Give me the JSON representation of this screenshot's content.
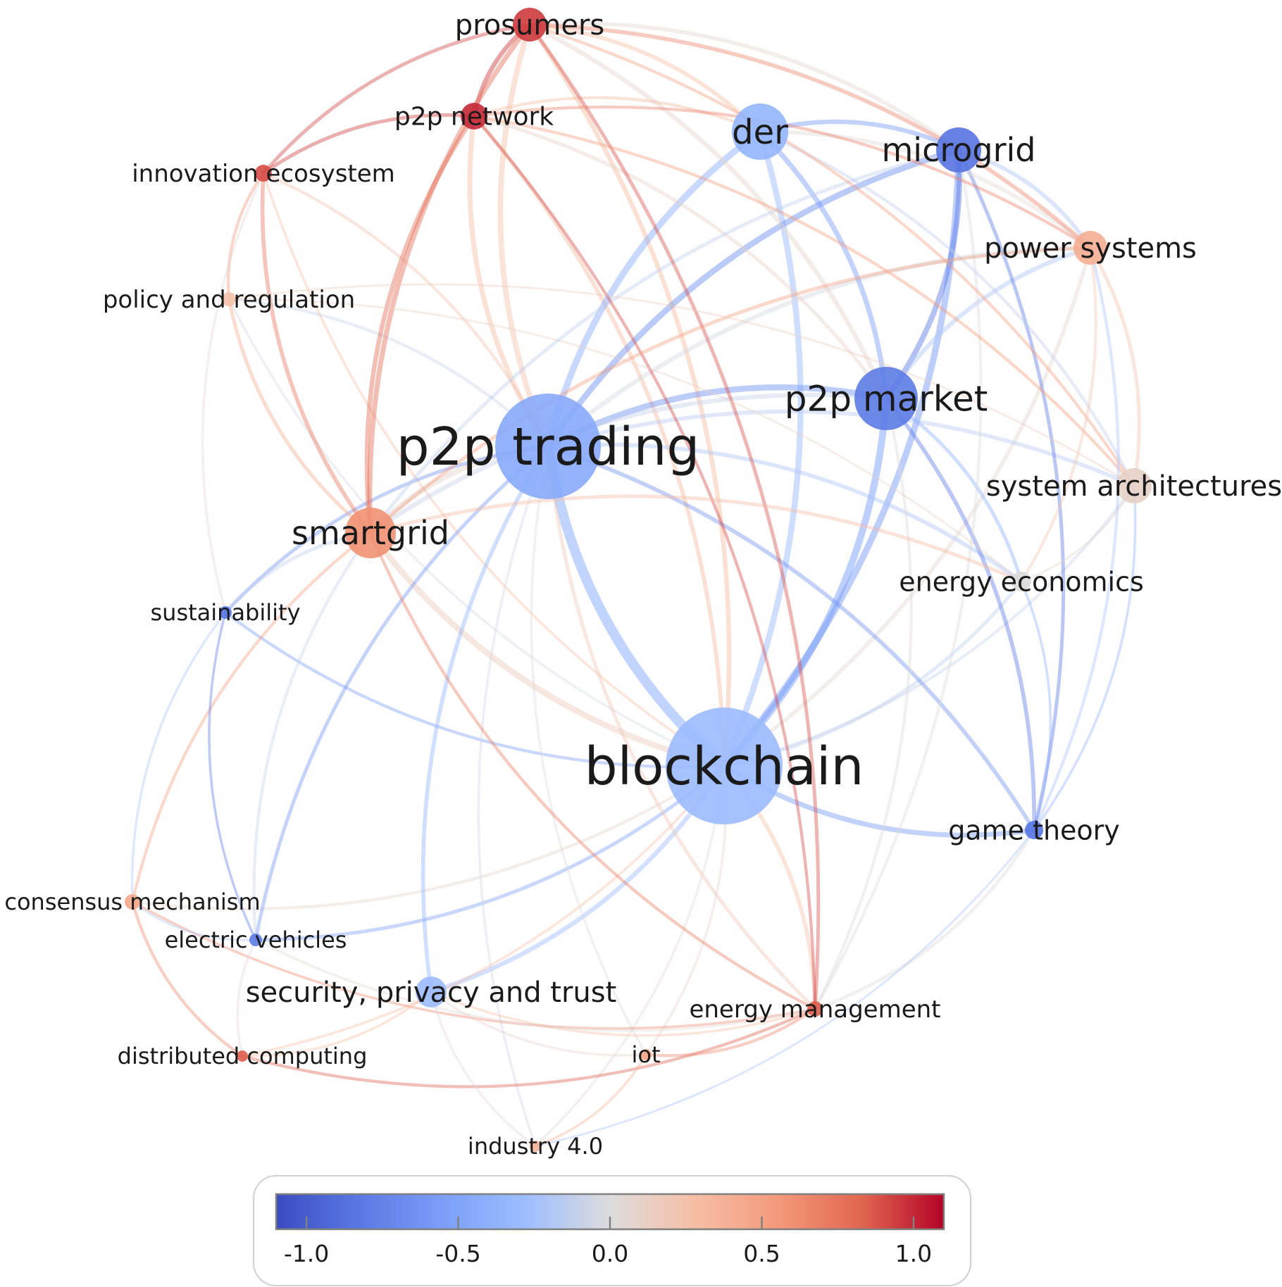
{
  "diagram": {
    "type": "keyword-co-occurrence-network",
    "nodes": [
      {
        "id": "prosumers",
        "label": "prosumers",
        "value": 0.95
      },
      {
        "id": "p2p_network",
        "label": "p2p network",
        "value": 1.0
      },
      {
        "id": "innovation_ecosystem",
        "label": "innovation ecosystem",
        "value": 0.9
      },
      {
        "id": "policy_regulation",
        "label": "policy and regulation",
        "value": 0.25
      },
      {
        "id": "der",
        "label": "der",
        "value": -0.35
      },
      {
        "id": "microgrid",
        "label": "microgrid",
        "value": -0.85
      },
      {
        "id": "power_systems",
        "label": "power systems",
        "value": 0.4
      },
      {
        "id": "p2p_market",
        "label": "p2p market",
        "value": -0.8
      },
      {
        "id": "p2p_trading",
        "label": "p2p trading",
        "value": -0.45
      },
      {
        "id": "system_architectures",
        "label": "system architectures",
        "value": 0.1
      },
      {
        "id": "smartgrid",
        "label": "smartgrid",
        "value": 0.6
      },
      {
        "id": "energy_economics",
        "label": "energy economics",
        "value": 0.0
      },
      {
        "id": "sustainability",
        "label": "sustainability",
        "value": -0.85
      },
      {
        "id": "blockchain",
        "label": "blockchain",
        "value": -0.3
      },
      {
        "id": "game_theory",
        "label": "game theory",
        "value": -0.85
      },
      {
        "id": "consensus_mechanism",
        "label": "consensus mechanism",
        "value": 0.45
      },
      {
        "id": "electric_vehicles",
        "label": "electric vehicles",
        "value": -0.8
      },
      {
        "id": "security_privacy_trust",
        "label": "security, privacy and trust",
        "value": -0.3
      },
      {
        "id": "energy_management",
        "label": "energy management",
        "value": 0.85
      },
      {
        "id": "distributed_computing",
        "label": "distributed computing",
        "value": 0.85
      },
      {
        "id": "iot",
        "label": "iot",
        "value": 0.45
      },
      {
        "id": "industry_4_0",
        "label": "industry 4.0",
        "value": 0.35
      }
    ],
    "edges": [
      [
        "blockchain",
        "p2p_trading",
        0.9
      ],
      [
        "blockchain",
        "p2p_market",
        0.6
      ],
      [
        "blockchain",
        "microgrid",
        0.55
      ],
      [
        "blockchain",
        "der",
        0.5
      ],
      [
        "blockchain",
        "smartgrid",
        0.5
      ],
      [
        "blockchain",
        "game_theory",
        0.4
      ],
      [
        "blockchain",
        "security_privacy_trust",
        0.35
      ],
      [
        "blockchain",
        "energy_management",
        0.3
      ],
      [
        "blockchain",
        "prosumers",
        0.35
      ],
      [
        "blockchain",
        "p2p_network",
        0.3
      ],
      [
        "blockchain",
        "power_systems",
        0.3
      ],
      [
        "blockchain",
        "energy_economics",
        0.25
      ],
      [
        "blockchain",
        "electric_vehicles",
        0.25
      ],
      [
        "blockchain",
        "sustainability",
        0.2
      ],
      [
        "blockchain",
        "system_architectures",
        0.2
      ],
      [
        "blockchain",
        "consensus_mechanism",
        0.2
      ],
      [
        "blockchain",
        "iot",
        0.15
      ],
      [
        "blockchain",
        "industry_4_0",
        0.15
      ],
      [
        "blockchain",
        "distributed_computing",
        0.15
      ],
      [
        "blockchain",
        "innovation_ecosystem",
        0.15
      ],
      [
        "blockchain",
        "policy_regulation",
        0.15
      ],
      [
        "p2p_trading",
        "der",
        0.55
      ],
      [
        "p2p_trading",
        "microgrid",
        0.5
      ],
      [
        "p2p_trading",
        "p2p_market",
        0.5
      ],
      [
        "p2p_trading",
        "prosumers",
        0.45
      ],
      [
        "p2p_trading",
        "smartgrid",
        0.45
      ],
      [
        "p2p_trading",
        "p2p_network",
        0.4
      ],
      [
        "p2p_trading",
        "power_systems",
        0.35
      ],
      [
        "p2p_trading",
        "energy_economics",
        0.3
      ],
      [
        "p2p_trading",
        "system_architectures",
        0.3
      ],
      [
        "p2p_trading",
        "game_theory",
        0.3
      ],
      [
        "p2p_trading",
        "security_privacy_trust",
        0.3
      ],
      [
        "p2p_trading",
        "energy_management",
        0.25
      ],
      [
        "p2p_trading",
        "sustainability",
        0.25
      ],
      [
        "p2p_trading",
        "electric_vehicles",
        0.25
      ],
      [
        "p2p_trading",
        "innovation_ecosystem",
        0.2
      ],
      [
        "p2p_trading",
        "policy_regulation",
        0.2
      ],
      [
        "p2p_trading",
        "iot",
        0.15
      ],
      [
        "p2p_trading",
        "industry_4_0",
        0.15
      ],
      [
        "p2p_market",
        "microgrid",
        0.45
      ],
      [
        "p2p_market",
        "der",
        0.4
      ],
      [
        "p2p_market",
        "prosumers",
        0.35
      ],
      [
        "p2p_market",
        "power_systems",
        0.35
      ],
      [
        "p2p_market",
        "smartgrid",
        0.35
      ],
      [
        "p2p_market",
        "game_theory",
        0.3
      ],
      [
        "p2p_market",
        "energy_economics",
        0.25
      ],
      [
        "p2p_market",
        "energy_management",
        0.2
      ],
      [
        "p2p_market",
        "p2p_network",
        0.25
      ],
      [
        "microgrid",
        "der",
        0.35
      ],
      [
        "microgrid",
        "prosumers",
        0.3
      ],
      [
        "microgrid",
        "power_systems",
        0.3
      ],
      [
        "microgrid",
        "game_theory",
        0.25
      ],
      [
        "microgrid",
        "smartgrid",
        0.25
      ],
      [
        "microgrid",
        "energy_management",
        0.2
      ],
      [
        "der",
        "prosumers",
        0.3
      ],
      [
        "der",
        "power_systems",
        0.3
      ],
      [
        "der",
        "p2p_network",
        0.2
      ],
      [
        "der",
        "system_architectures",
        0.2
      ],
      [
        "prosumers",
        "p2p_network",
        0.35
      ],
      [
        "prosumers",
        "smartgrid",
        0.4
      ],
      [
        "prosumers",
        "power_systems",
        0.3
      ],
      [
        "prosumers",
        "innovation_ecosystem",
        0.25
      ],
      [
        "prosumers",
        "energy_management",
        0.25
      ],
      [
        "prosumers",
        "system_architectures",
        0.2
      ],
      [
        "p2p_network",
        "smartgrid",
        0.35
      ],
      [
        "p2p_network",
        "innovation_ecosystem",
        0.25
      ],
      [
        "p2p_network",
        "power_systems",
        0.2
      ],
      [
        "p2p_network",
        "energy_management",
        0.2
      ],
      [
        "p2p_network",
        "system_architectures",
        0.2
      ],
      [
        "smartgrid",
        "innovation_ecosystem",
        0.3
      ],
      [
        "smartgrid",
        "policy_regulation",
        0.25
      ],
      [
        "smartgrid",
        "sustainability",
        0.25
      ],
      [
        "smartgrid",
        "consensus_mechanism",
        0.2
      ],
      [
        "smartgrid",
        "electric_vehicles",
        0.2
      ],
      [
        "smartgrid",
        "energy_management",
        0.2
      ],
      [
        "smartgrid",
        "power_systems",
        0.25
      ],
      [
        "smartgrid",
        "energy_economics",
        0.25
      ],
      [
        "power_systems",
        "system_architectures",
        0.25
      ],
      [
        "power_systems",
        "energy_economics",
        0.2
      ],
      [
        "power_systems",
        "game_theory",
        0.2
      ],
      [
        "energy_management",
        "game_theory",
        0.25
      ],
      [
        "energy_management",
        "distributed_computing",
        0.2
      ],
      [
        "energy_management",
        "iot",
        0.2
      ],
      [
        "energy_management",
        "security_privacy_trust",
        0.15
      ],
      [
        "energy_management",
        "consensus_mechanism",
        0.15
      ],
      [
        "energy_management",
        "electric_vehicles",
        0.15
      ],
      [
        "consensus_mechanism",
        "distributed_computing",
        0.2
      ],
      [
        "consensus_mechanism",
        "electric_vehicles",
        0.15
      ],
      [
        "consensus_mechanism",
        "sustainability",
        0.15
      ],
      [
        "distributed_computing",
        "electric_vehicles",
        0.15
      ],
      [
        "distributed_computing",
        "security_privacy_trust",
        0.15
      ],
      [
        "security_privacy_trust",
        "iot",
        0.15
      ],
      [
        "security_privacy_trust",
        "industry_4_0",
        0.15
      ],
      [
        "iot",
        "industry_4_0",
        0.15
      ],
      [
        "innovation_ecosystem",
        "policy_regulation",
        0.2
      ],
      [
        "innovation_ecosystem",
        "sustainability",
        0.15
      ],
      [
        "game_theory",
        "system_architectures",
        0.15
      ],
      [
        "game_theory",
        "energy_economics",
        0.15
      ],
      [
        "game_theory",
        "industry_4_0",
        0.1
      ],
      [
        "system_architectures",
        "energy_economics",
        0.15
      ],
      [
        "sustainability",
        "electric_vehicles",
        0.15
      ],
      [
        "policy_regulation",
        "system_architectures",
        0.1
      ],
      [
        "policy_regulation",
        "energy_economics",
        0.1
      ]
    ]
  },
  "colorbar": {
    "colormap": "coolwarm",
    "range": [
      -1.1,
      1.1
    ],
    "ticks": [
      {
        "value": -1.0,
        "label": "-1.0"
      },
      {
        "value": -0.5,
        "label": "-0.5"
      },
      {
        "value": 0.0,
        "label": "0.0"
      },
      {
        "value": 0.5,
        "label": "0.5"
      },
      {
        "value": 1.0,
        "label": "1.0"
      }
    ]
  }
}
